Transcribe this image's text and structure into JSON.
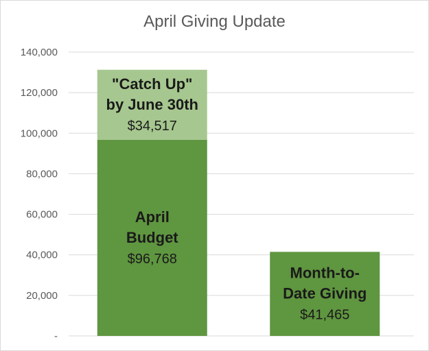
{
  "chart_data": {
    "type": "bar",
    "stacked": true,
    "title": "April Giving Update",
    "categories": [
      "April Budget",
      "Month-to-Date Giving"
    ],
    "series": [
      {
        "key": "base",
        "color": "#5f9640",
        "values": [
          96768,
          41465
        ],
        "labels": [
          {
            "lines": [
              "April",
              "Budget"
            ],
            "value": "$96,768"
          },
          {
            "lines": [
              "Month-to-",
              "Date Giving"
            ],
            "value": "$41,465"
          }
        ]
      },
      {
        "key": "catchup",
        "color": "#a6c78f",
        "values": [
          34517,
          0
        ],
        "labels": [
          {
            "lines": [
              "\"Catch Up\"",
              "by June 30th"
            ],
            "value": "$34,517"
          },
          null
        ]
      }
    ],
    "ylim": [
      0,
      140000
    ],
    "yticks": [
      0,
      20000,
      40000,
      60000,
      80000,
      100000,
      120000,
      140000
    ],
    "ytick_labels": [
      "-",
      "20,000",
      "40,000",
      "60,000",
      "80,000",
      "100,000",
      "120,000",
      "140,000"
    ],
    "grid": true,
    "legend": "none"
  }
}
